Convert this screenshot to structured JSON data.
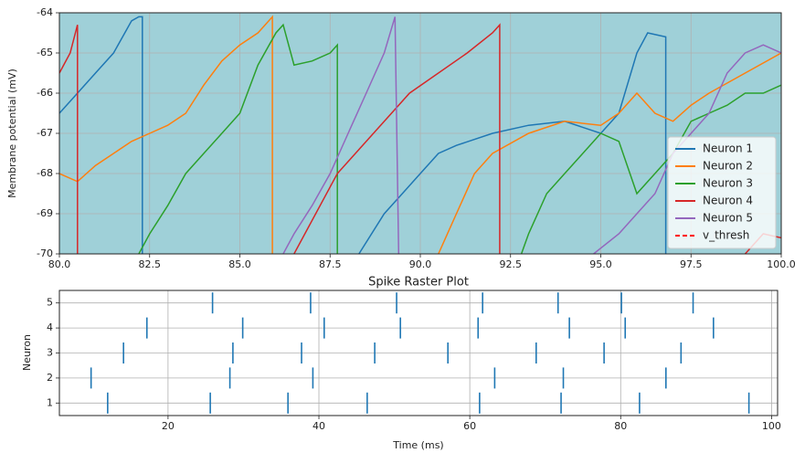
{
  "chart_data": [
    {
      "type": "line",
      "ylabel": "Membrane potential (mV)",
      "xlim": [
        80,
        100
      ],
      "ylim": [
        -70,
        -64
      ],
      "xticks": [
        {
          "value": 80,
          "label": "80.0"
        },
        {
          "value": 82.5,
          "label": "82.5"
        },
        {
          "value": 85,
          "label": "85.0"
        },
        {
          "value": 87.5,
          "label": "87.5"
        },
        {
          "value": 90,
          "label": "90.0"
        },
        {
          "value": 92.5,
          "label": "92.5"
        },
        {
          "value": 95,
          "label": "95.0"
        },
        {
          "value": 97.5,
          "label": "97.5"
        },
        {
          "value": 100,
          "label": "100.0"
        }
      ],
      "yticks": [
        -70,
        -69,
        -68,
        -67,
        -66,
        -65,
        -64
      ],
      "grid": true,
      "legend": "lower right",
      "series": [
        {
          "name": "Neuron 1",
          "color": "#1f77b4",
          "dash": "solid",
          "x": [
            80,
            80.5,
            81,
            81.5,
            82,
            82.2,
            82.3,
            82.3,
            null,
            88.3,
            89,
            89.5,
            90,
            90.5,
            91,
            92,
            93,
            94,
            95,
            95.5,
            96,
            96.3,
            96.8,
            96.8
          ],
          "values": [
            -66.5,
            -66,
            -65.5,
            -65,
            -64.2,
            -64.1,
            -64.1,
            -70,
            null,
            -70,
            -69,
            -68.5,
            -68,
            -67.5,
            -67.3,
            -67,
            -66.8,
            -66.7,
            -67,
            -66.5,
            -65,
            -64.5,
            -64.6,
            -70
          ]
        },
        {
          "name": "Neuron 2",
          "color": "#ff7f0e",
          "dash": "solid",
          "x": [
            80,
            80.5,
            81,
            81.5,
            82,
            82.5,
            83,
            83.5,
            84,
            84.5,
            85,
            85.5,
            85.9,
            85.9,
            null,
            90.5,
            91,
            91.5,
            92,
            93,
            94,
            95,
            95.5,
            96,
            96.5,
            97,
            97.5,
            98,
            99,
            100
          ],
          "values": [
            -68,
            -68.2,
            -67.8,
            -67.5,
            -67.2,
            -67,
            -66.8,
            -66.5,
            -65.8,
            -65.2,
            -64.8,
            -64.5,
            -64.1,
            -70,
            null,
            -70,
            -69,
            -68,
            -67.5,
            -67,
            -66.7,
            -66.8,
            -66.5,
            -66,
            -66.5,
            -66.7,
            -66.3,
            -66,
            -65.5,
            -65
          ]
        },
        {
          "name": "Neuron 3",
          "color": "#2ca02c",
          "dash": "solid",
          "x": [
            82.2,
            82.5,
            83,
            83.5,
            84,
            84.5,
            85,
            85.5,
            86,
            86.2,
            86.5,
            87,
            87.5,
            87.7,
            87.7,
            null,
            92.8,
            93,
            93.5,
            94,
            94.5,
            95,
            95.5,
            96,
            96.5,
            97,
            97.5,
            98,
            98.5,
            99,
            99.5,
            100
          ],
          "values": [
            -70,
            -69.5,
            -68.8,
            -68,
            -67.5,
            -67,
            -66.5,
            -65.3,
            -64.5,
            -64.3,
            -65.3,
            -65.2,
            -65,
            -64.8,
            -70,
            null,
            -70,
            -69.5,
            -68.5,
            -68,
            -67.5,
            -67,
            -67.2,
            -68.5,
            -68,
            -67.5,
            -66.7,
            -66.5,
            -66.3,
            -66,
            -66,
            -65.8
          ]
        },
        {
          "name": "Neuron 4",
          "color": "#d62728",
          "dash": "solid",
          "x": [
            80,
            80.3,
            80.5,
            80.5,
            null,
            86.5,
            87.7,
            88.7,
            89.7,
            91.3,
            92,
            92.2,
            92.2,
            null,
            99,
            99.5,
            100
          ],
          "values": [
            -65.5,
            -65,
            -64.3,
            -70,
            null,
            -70,
            -68,
            -67,
            -66,
            -65,
            -64.5,
            -64.3,
            -70,
            null,
            -70,
            -69.5,
            -69.6
          ]
        },
        {
          "name": "Neuron 5",
          "color": "#9467bd",
          "dash": "solid",
          "x": [
            86.2,
            86.5,
            87,
            87.5,
            88,
            88.5,
            89,
            89.3,
            89.4,
            null,
            94.8,
            95.5,
            96,
            96.5,
            97,
            97.5,
            98,
            98.5,
            99,
            99.5,
            100
          ],
          "values": [
            -70,
            -69.5,
            -68.8,
            -68,
            -67,
            -66,
            -65,
            -64.1,
            -70,
            null,
            -70,
            -69.5,
            -69,
            -68.5,
            -67.5,
            -67,
            -66.5,
            -65.5,
            -65,
            -64.8,
            -65
          ]
        },
        {
          "name": "v_thresh",
          "color": "#ff0000",
          "dash": "dashed",
          "x": [],
          "values": []
        }
      ]
    },
    {
      "type": "raster",
      "title": "Spike Raster Plot",
      "xlabel": "Time (ms)",
      "ylabel": "Neuron",
      "xlim": [
        5.6,
        100.8
      ],
      "ylim": [
        0.5,
        5.5
      ],
      "xticks": [
        20,
        40,
        60,
        80,
        100
      ],
      "yticks": [
        1,
        2,
        3,
        4,
        5
      ],
      "grid": true,
      "series": [
        {
          "name": "1",
          "color": "#1f77b4",
          "x": [
            12.0,
            25.6,
            35.9,
            46.4,
            61.3,
            72.1,
            82.5,
            97.0
          ],
          "values": [
            1,
            1,
            1,
            1,
            1,
            1,
            1,
            1
          ]
        },
        {
          "name": "2",
          "color": "#1f77b4",
          "x": [
            9.8,
            28.2,
            39.2,
            63.3,
            72.4,
            86.0
          ],
          "values": [
            2,
            2,
            2,
            2,
            2,
            2
          ]
        },
        {
          "name": "3",
          "color": "#1f77b4",
          "x": [
            14.1,
            28.6,
            37.7,
            47.4,
            57.1,
            68.8,
            77.8,
            88.0
          ],
          "values": [
            3,
            3,
            3,
            3,
            3,
            3,
            3,
            3
          ]
        },
        {
          "name": "4",
          "color": "#1f77b4",
          "x": [
            17.2,
            29.9,
            40.7,
            50.8,
            61.1,
            73.2,
            80.6,
            92.3
          ],
          "values": [
            4,
            4,
            4,
            4,
            4,
            4,
            4,
            4
          ]
        },
        {
          "name": "5",
          "color": "#1f77b4",
          "x": [
            25.9,
            38.9,
            50.3,
            61.7,
            71.7,
            80.1,
            89.6
          ],
          "values": [
            5,
            5,
            5,
            5,
            5,
            5,
            5
          ]
        }
      ]
    }
  ]
}
